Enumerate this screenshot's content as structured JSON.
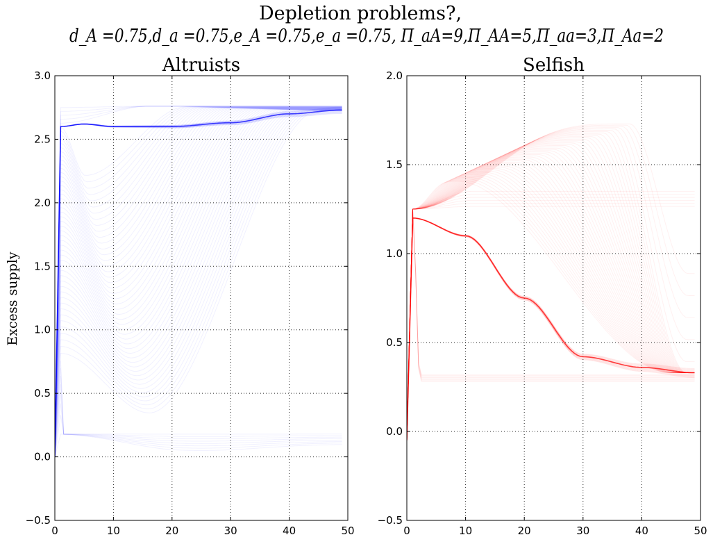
{
  "figure": {
    "title": "Depletion problems?,",
    "subtitle": "d_A =0.75,d_a =0.75,e_A =0.75,e_a =0.75, Π_aA=9,Π_AA=5,Π_aa=3,Π_Aa=2"
  },
  "chart_data": [
    {
      "type": "line",
      "title": "Altruists",
      "xlabel": "",
      "ylabel": "Excess supply",
      "xlim": [
        0,
        50
      ],
      "ylim": [
        -0.5,
        3.0
      ],
      "xticks": [
        0,
        10,
        20,
        30,
        40,
        50
      ],
      "xtick_labels": [
        "0",
        "10",
        "20",
        "30",
        "40",
        "50"
      ],
      "yticks": [
        -0.5,
        0.0,
        0.5,
        1.0,
        1.5,
        2.0,
        2.5,
        3.0
      ],
      "ytick_labels": [
        "−0.5",
        "0.0",
        "0.5",
        "1.0",
        "1.5",
        "2.0",
        "2.5",
        "3.0"
      ],
      "grid": true,
      "color": "#0000ff",
      "series_count": 60,
      "series_start": {
        "t": 0,
        "value": 0.0
      },
      "series_range_at_t1": [
        0.18,
        2.75
      ],
      "lower_band_final": [
        0.1,
        0.18
      ],
      "upper_band_final": [
        2.72,
        2.76
      ],
      "upper_band_plateau": 2.75,
      "late_rise_end_t": [
        20,
        49
      ],
      "converged_final_value": 2.73,
      "converged_series": {
        "x": [
          0,
          1,
          5,
          10,
          20,
          30,
          40,
          49
        ],
        "y": [
          0.0,
          2.6,
          2.62,
          2.6,
          2.6,
          2.63,
          2.7,
          2.73
        ]
      }
    },
    {
      "type": "line",
      "title": "Selfish",
      "xlabel": "",
      "ylabel": "",
      "xlim": [
        0,
        50
      ],
      "ylim": [
        -0.5,
        2.0
      ],
      "xticks": [
        0,
        10,
        20,
        30,
        40,
        50
      ],
      "xtick_labels": [
        "0",
        "10",
        "20",
        "30",
        "40",
        "50"
      ],
      "yticks": [
        -0.5,
        0.0,
        0.5,
        1.0,
        1.5,
        2.0
      ],
      "ytick_labels": [
        "−0.5",
        "0.0",
        "0.5",
        "1.0",
        "1.5",
        "2.0"
      ],
      "grid": true,
      "color": "#ff0000",
      "series_count": 60,
      "series_start": {
        "t": 0,
        "value": -0.05
      },
      "series_value_at_t1": 1.25,
      "upper_band_final": [
        1.25,
        1.35
      ],
      "lower_band_final": [
        0.28,
        0.32
      ],
      "hump_peak_range": [
        1.4,
        1.73
      ],
      "hump_peak_t": [
        8,
        38
      ],
      "converged_final_value": 0.33,
      "converged_series": {
        "x": [
          0,
          1,
          10,
          20,
          30,
          40,
          49
        ],
        "y": [
          -0.05,
          1.2,
          1.1,
          0.75,
          0.42,
          0.36,
          0.33
        ]
      }
    }
  ]
}
